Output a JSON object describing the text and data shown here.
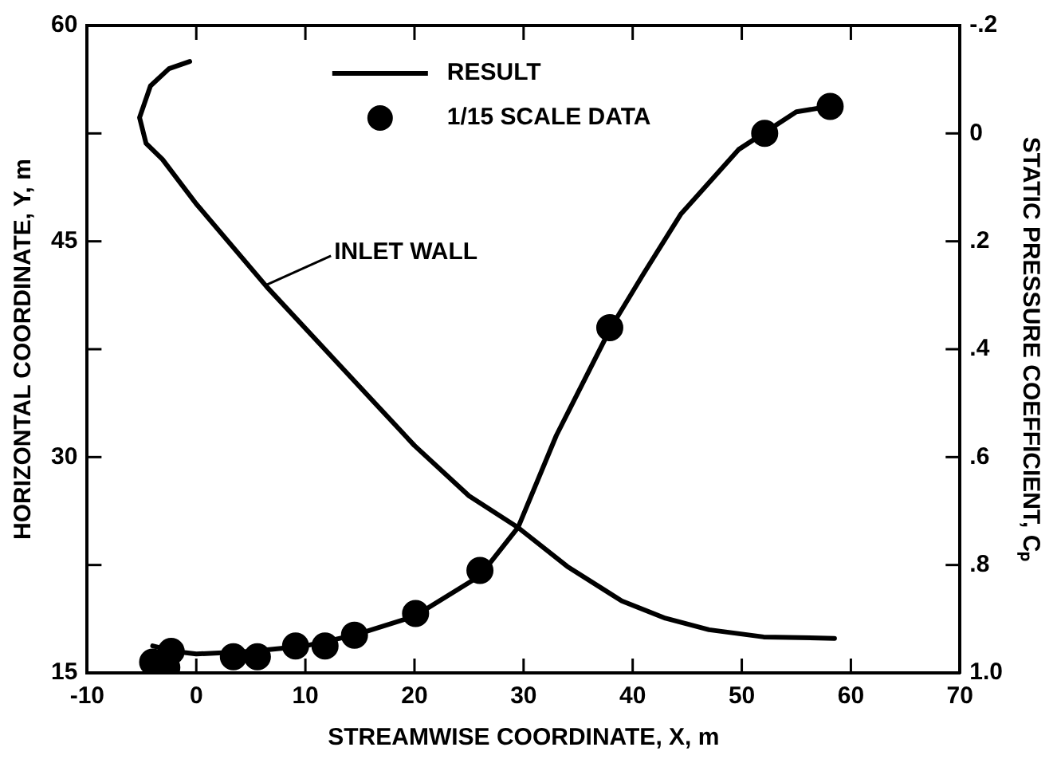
{
  "chart_data": {
    "type": "line",
    "xlabel": "STREAMWISE COORDINATE, X, m",
    "ylabel": "HORIZONTAL COORDINATE, Y, m",
    "y2label": "STATIC PRESSURE COEFFICIENT, Cₚ",
    "xlim": [
      -10,
      70
    ],
    "xticks": [
      -10,
      0,
      10,
      20,
      30,
      40,
      50,
      60,
      70
    ],
    "ylim": [
      15,
      60
    ],
    "yticks": [
      15,
      {
        "value": 22.5,
        "label": null
      },
      30,
      {
        "value": 37.5,
        "label": null
      },
      45,
      {
        "value": 52.5,
        "label": null
      },
      60
    ],
    "y2lim": [
      1.0,
      -0.2
    ],
    "y2ticks": [
      {
        "value": -0.2,
        "label": "-.2"
      },
      0,
      {
        "value": 0.2,
        "label": ".2"
      },
      {
        "value": 0.4,
        "label": ".4"
      },
      {
        "value": 0.6,
        "label": ".6"
      },
      {
        "value": 0.8,
        "label": ".8"
      },
      {
        "value": 1.0,
        "label": "1.0"
      }
    ],
    "grid": false,
    "legend": "top",
    "annotations": [
      {
        "text": "INLET WALL",
        "x": 6.5,
        "y": 42
      }
    ],
    "series": [
      {
        "type": "line",
        "color": "#000000",
        "marker": "none",
        "x": [
          -0.6,
          -2.5,
          -4.2,
          -5.2,
          -4.6,
          -3.1,
          0,
          6.5,
          13,
          20,
          25,
          29.5,
          34,
          39,
          43,
          47,
          52,
          58.5
        ],
        "values": [
          57.5,
          57,
          55.8,
          53.6,
          51.8,
          50.7,
          47.6,
          41.8,
          36.5,
          30.8,
          27.3,
          25.1,
          22.4,
          20,
          18.8,
          18,
          17.5,
          17.4
        ]
      },
      {
        "type": "line",
        "name": "RESULT",
        "color": "#000000",
        "axis": "y2",
        "marker": "none",
        "x": [
          -4,
          -2,
          0,
          5,
          10,
          14.5,
          20,
          26,
          29.5,
          33,
          38,
          41,
          44.4,
          49.7,
          55,
          58
        ],
        "values": [
          0.95,
          0.96,
          0.965,
          0.96,
          0.95,
          0.93,
          0.895,
          0.82,
          0.73,
          0.56,
          0.36,
          0.26,
          0.15,
          0.03,
          -0.04,
          -0.05
        ]
      },
      {
        "type": "scatter",
        "name": "1/15 SCALE DATA",
        "color": "#000000",
        "axis": "y2",
        "marker": "circle",
        "x": [
          -4,
          -2.7,
          -2.3,
          3.4,
          5.6,
          9.1,
          11.8,
          14.5,
          20.1,
          26,
          37.9,
          52.1,
          58.1
        ],
        "values": [
          0.98,
          0.99,
          0.96,
          0.97,
          0.97,
          0.95,
          0.95,
          0.93,
          0.89,
          0.81,
          0.36,
          0,
          -0.05
        ]
      }
    ]
  }
}
